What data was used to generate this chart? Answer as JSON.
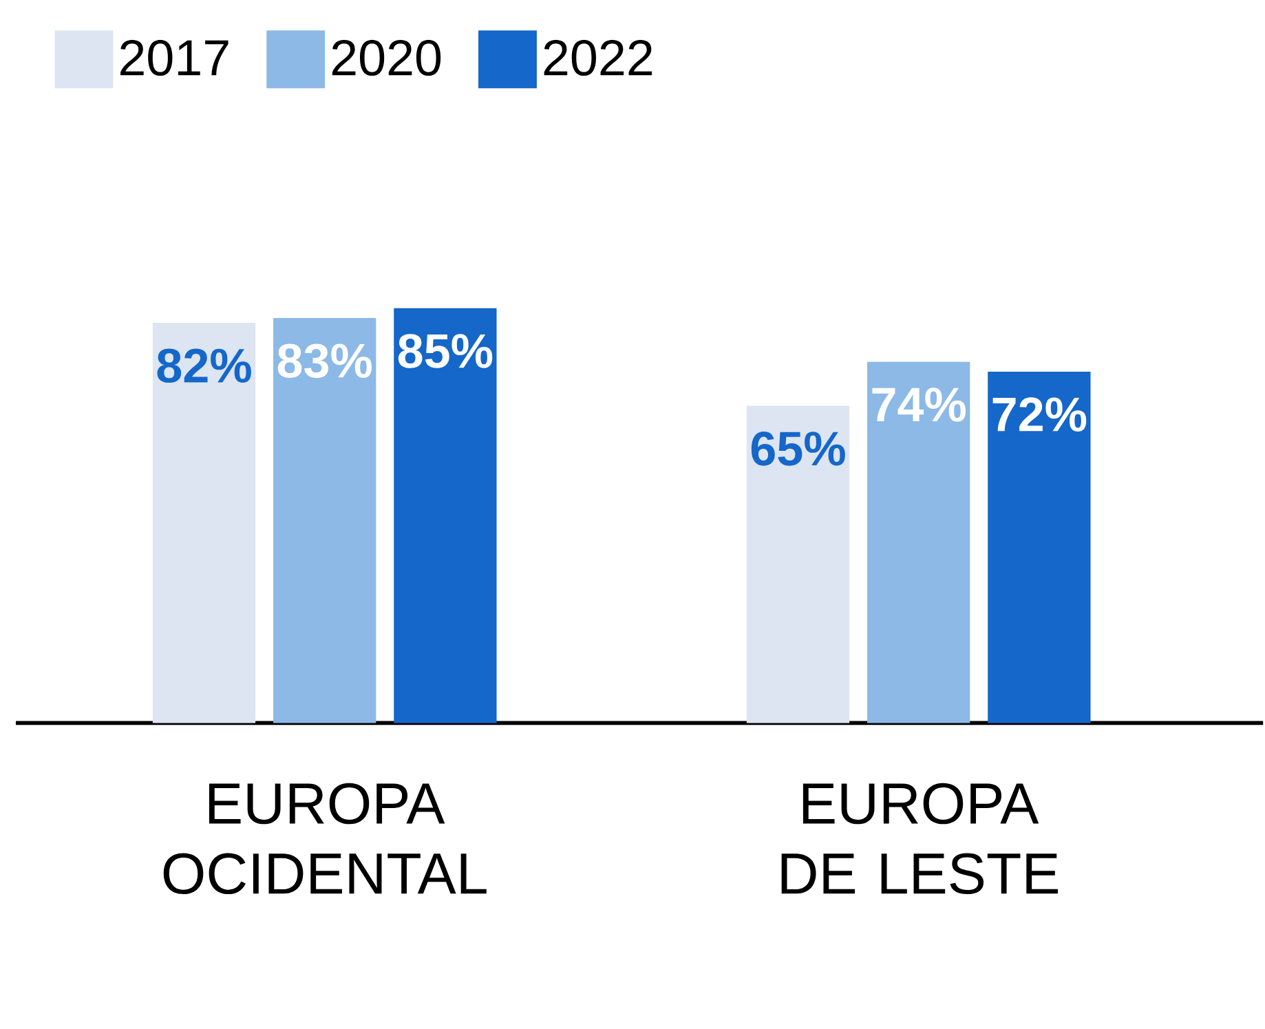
{
  "chart_data": {
    "type": "bar",
    "categories": [
      "EUROPA OCIDENTAL",
      "EUROPA DE LESTE"
    ],
    "tick_labels": "x",
    "legend": "top left",
    "series": [
      {
        "name": "2017",
        "color": "#dce5f1",
        "values": [
          82,
          65
        ],
        "value_labels": [
          "82%",
          "65%"
        ]
      },
      {
        "name": "2020",
        "color": "#8cb9e6",
        "values": [
          83,
          74
        ],
        "value_labels": [
          "83%",
          "74%"
        ]
      },
      {
        "name": "2022",
        "color": "#1567c9",
        "values": [
          85,
          72
        ],
        "value_labels": [
          "85%",
          "72%"
        ]
      }
    ]
  }
}
